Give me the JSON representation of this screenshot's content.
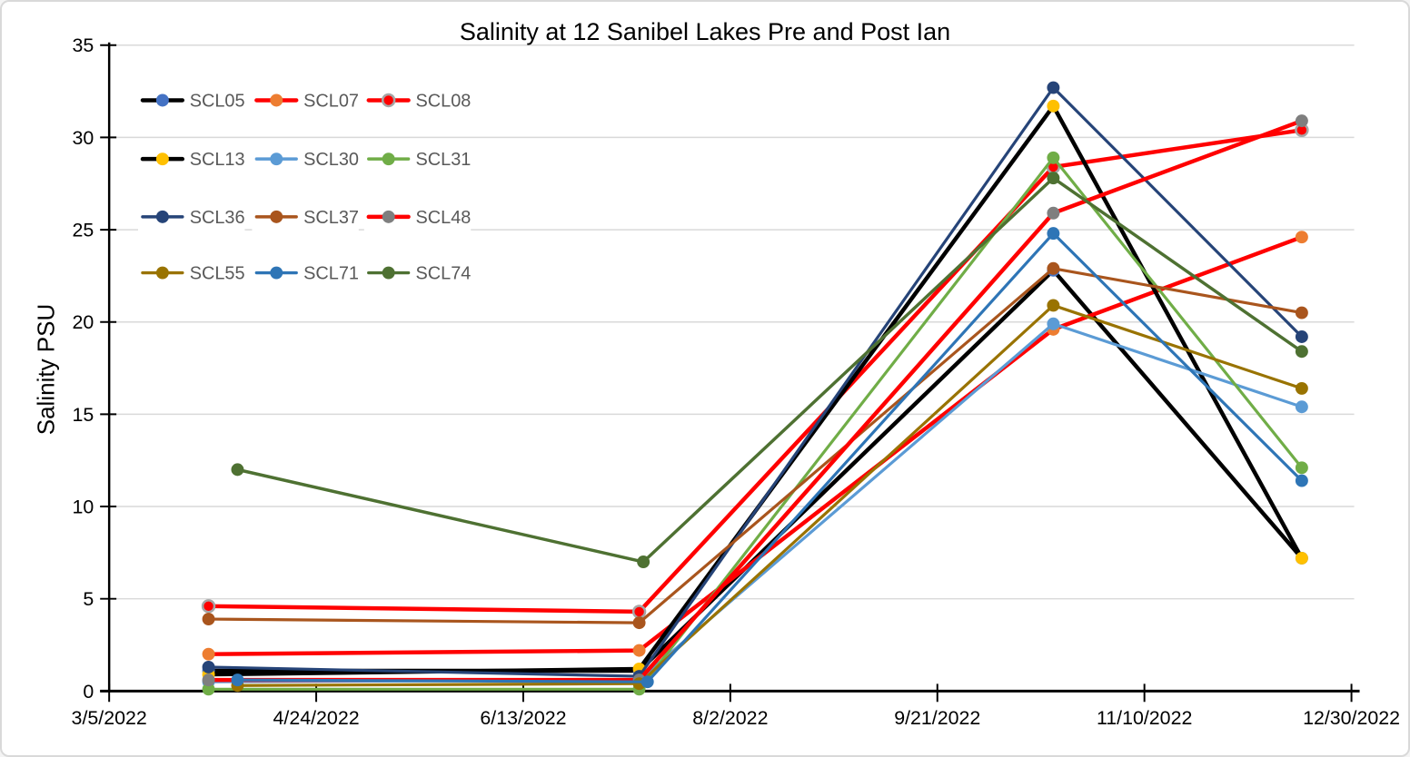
{
  "window": {
    "background": "#FFFFFF",
    "border_color": "#D9D9D9"
  },
  "chart_data": {
    "type": "line",
    "title": "Salinity at 12 Sanibel Lakes Pre and Post Ian",
    "xlabel": "",
    "ylabel": "Salinity PSU",
    "x_axis": {
      "kind": "date",
      "tick_labels": [
        "3/5/2022",
        "4/24/2022",
        "6/13/2022",
        "8/2/2022",
        "9/21/2022",
        "11/10/2022",
        "12/30/2022"
      ],
      "range_days": [
        0,
        300
      ],
      "tick_interval_days": 50
    },
    "y_axis": {
      "ticks": [
        0,
        5,
        10,
        15,
        20,
        25,
        30,
        35
      ],
      "ylim": [
        0,
        35
      ]
    },
    "grid": "horizontal",
    "legend_position": "inside-top-left",
    "legend_layout": {
      "rows": 4,
      "cols": 3
    },
    "colors": {
      "gridline": "#D9D9D9",
      "axis": "#000000",
      "tick_label_text": "#000000",
      "legend_text": "#595959",
      "title_text": "#000000"
    },
    "series": [
      {
        "name": "SCL05",
        "line_color": "#000000",
        "marker_color": "#4472C4",
        "line_width": 4.5,
        "x_days": [
          24,
          128,
          228,
          288
        ],
        "values": [
          1.1,
          1.1,
          22.8,
          7.2
        ]
      },
      {
        "name": "SCL07",
        "line_color": "#FF0000",
        "marker_color": "#ED7D31",
        "line_width": 4.5,
        "x_days": [
          24,
          128,
          228,
          288
        ],
        "values": [
          2.0,
          2.2,
          19.6,
          24.6
        ]
      },
      {
        "name": "SCL08",
        "line_color": "#FF0000",
        "marker_color": "#FF0000",
        "marker_ring": "#A6A6A6",
        "line_width": 4.5,
        "x_days": [
          24,
          128,
          228,
          288
        ],
        "values": [
          4.6,
          4.3,
          28.4,
          30.4
        ]
      },
      {
        "name": "SCL13",
        "line_color": "#000000",
        "marker_color": "#FFC000",
        "line_width": 4.5,
        "x_days": [
          24,
          128,
          228,
          288
        ],
        "values": [
          0.9,
          1.2,
          31.7,
          7.2
        ]
      },
      {
        "name": "SCL30",
        "line_color": "#5B9BD5",
        "marker_color": "#5B9BD5",
        "line_width": 3.2,
        "x_days": [
          24,
          128,
          228,
          288
        ],
        "values": [
          0.5,
          0.6,
          19.9,
          15.4
        ]
      },
      {
        "name": "SCL31",
        "line_color": "#70AD47",
        "marker_color": "#70AD47",
        "line_width": 3.2,
        "x_days": [
          24,
          128,
          228,
          288
        ],
        "values": [
          0.1,
          0.1,
          28.9,
          12.1
        ]
      },
      {
        "name": "SCL36",
        "line_color": "#264478",
        "marker_color": "#264478",
        "line_width": 3.2,
        "x_days": [
          24,
          128,
          228,
          288
        ],
        "values": [
          1.3,
          0.8,
          32.7,
          19.2
        ]
      },
      {
        "name": "SCL37",
        "line_color": "#A9551D",
        "marker_color": "#A9551D",
        "line_width": 3.2,
        "x_days": [
          24,
          128,
          228,
          288
        ],
        "values": [
          3.9,
          3.7,
          22.9,
          20.5
        ]
      },
      {
        "name": "SCL48",
        "line_color": "#FF0000",
        "marker_color": "#7F7F7F",
        "line_width": 4.5,
        "x_days": [
          24,
          128,
          228,
          288
        ],
        "values": [
          0.6,
          0.6,
          25.9,
          30.9
        ]
      },
      {
        "name": "SCL55",
        "line_color": "#997300",
        "marker_color": "#997300",
        "line_width": 3.2,
        "x_days": [
          31,
          128,
          228,
          288
        ],
        "values": [
          0.3,
          0.4,
          20.9,
          16.4
        ]
      },
      {
        "name": "SCL71",
        "line_color": "#2E75B6",
        "marker_color": "#2E75B6",
        "line_width": 3.2,
        "x_days": [
          31,
          130,
          228,
          288
        ],
        "values": [
          0.6,
          0.5,
          24.8,
          11.4
        ]
      },
      {
        "name": "SCL74",
        "line_color": "#4E7132",
        "marker_color": "#4E7132",
        "line_width": 3.5,
        "x_days": [
          31,
          129,
          228,
          288
        ],
        "values": [
          12.0,
          7.0,
          27.8,
          18.4
        ]
      }
    ]
  }
}
